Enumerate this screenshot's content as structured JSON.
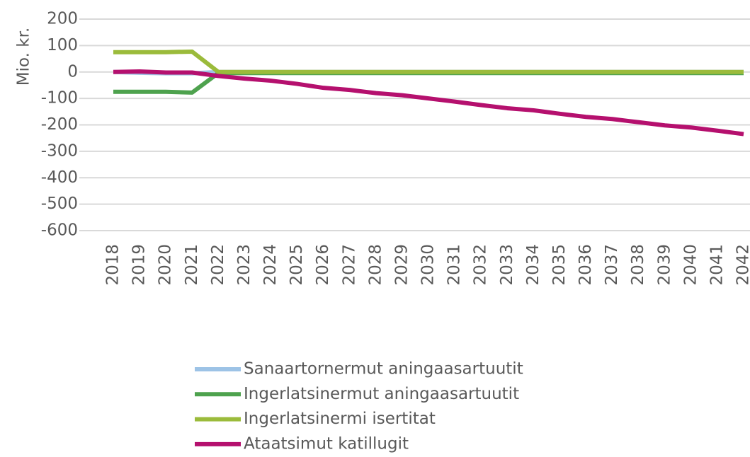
{
  "chart_data": {
    "type": "line",
    "y_label": "Mio. kr.",
    "categories": [
      "2018",
      "2019",
      "2020",
      "2021",
      "2022",
      "2023",
      "2024",
      "2025",
      "2026",
      "2027",
      "2028",
      "2029",
      "2030",
      "2031",
      "2032",
      "2033",
      "2034",
      "2035",
      "2036",
      "2037",
      "2038",
      "2039",
      "2040",
      "2041",
      "2042"
    ],
    "series": [
      {
        "name": "Sanaartornermut aningaasartuutit",
        "color": "#9dc3e6",
        "values": [
          0,
          -3,
          -5,
          -5,
          0,
          0,
          0,
          0,
          0,
          0,
          0,
          0,
          0,
          0,
          0,
          0,
          0,
          0,
          0,
          0,
          0,
          0,
          0,
          0,
          0
        ]
      },
      {
        "name": "Ingerlatsinermut aningaasartuutit",
        "color": "#4ea24e",
        "values": [
          -75,
          -75,
          -75,
          -78,
          -4,
          -4,
          -4,
          -4,
          -4,
          -4,
          -4,
          -4,
          -4,
          -4,
          -4,
          -4,
          -4,
          -4,
          -4,
          -4,
          -4,
          -4,
          -4,
          -4,
          -4
        ]
      },
      {
        "name": "Ingerlatsinermi isertitat",
        "color": "#9bbb3b",
        "values": [
          75,
          75,
          75,
          77,
          0,
          0,
          0,
          0,
          0,
          0,
          0,
          0,
          0,
          0,
          0,
          0,
          0,
          0,
          0,
          0,
          0,
          0,
          0,
          0,
          0
        ]
      },
      {
        "name": "Ataatsimut katillugit",
        "color": "#b5106e",
        "values": [
          0,
          2,
          -2,
          -2,
          -15,
          -25,
          -33,
          -45,
          -60,
          -68,
          -80,
          -88,
          -100,
          -112,
          -125,
          -137,
          -145,
          -158,
          -170,
          -178,
          -190,
          -202,
          -210,
          -222,
          -235
        ]
      }
    ],
    "ylim": [
      -600,
      200
    ],
    "yticks": [
      -600,
      -500,
      -400,
      -300,
      -200,
      -100,
      0,
      100,
      200
    ],
    "grid": true
  }
}
